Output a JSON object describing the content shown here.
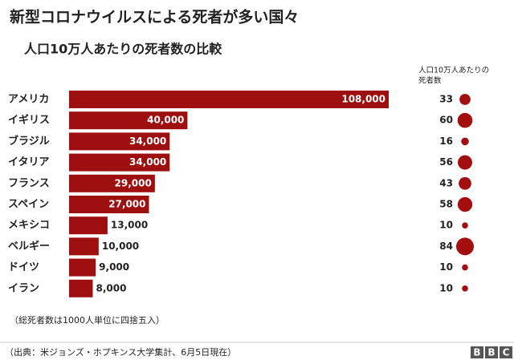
{
  "chart_data": {
    "type": "bar",
    "title": "新型コロナウイルスによる死者が多い国々",
    "subtitle": "人口10万人あたりの死者数の比較",
    "categories": [
      "アメリカ",
      "イギリス",
      "ブラジル",
      "イタリア",
      "フランス",
      "スペイン",
      "メキシコ",
      "ベルギー",
      "ドイツ",
      "イラン"
    ],
    "values": [
      108000,
      40000,
      34000,
      34000,
      29000,
      27000,
      13000,
      10000,
      9000,
      8000
    ],
    "value_labels": [
      "108,000",
      "40,000",
      "34,000",
      "34,000",
      "29,000",
      "27,000",
      "13,000",
      "10,000",
      "9,000",
      "8,000"
    ],
    "color": "#9e1010",
    "per_capita": {
      "label_lines": [
        "人口10万人あたりの",
        "死者数"
      ],
      "values": [
        33,
        60,
        16,
        56,
        43,
        58,
        10,
        84,
        10,
        10
      ],
      "color": "#a30f0f"
    },
    "note": "（総死者数は1000人単位に四捨五入）",
    "source": "（出典：米ジョンズ・ホプキンス大学集計、6月5日現在）",
    "logo": [
      "B",
      "B",
      "C"
    ]
  }
}
